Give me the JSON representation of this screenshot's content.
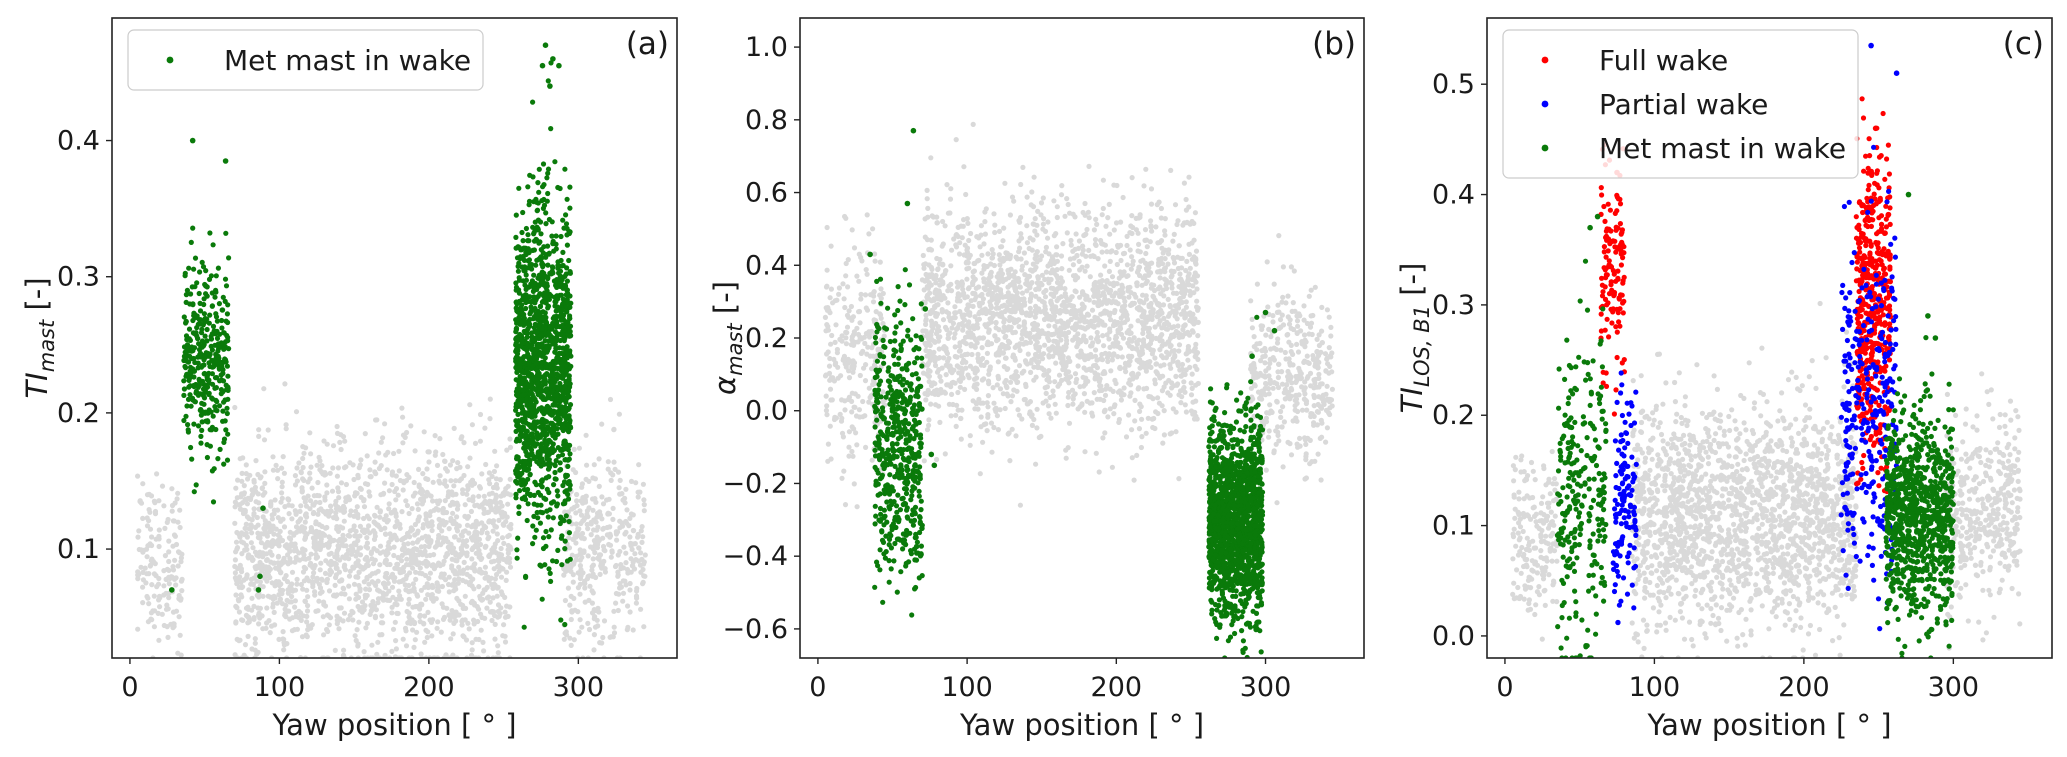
{
  "chart_data": [
    {
      "type": "scatter",
      "panel_label": "(a)",
      "xlabel": "Yaw position [ ° ]",
      "ylabel": {
        "base": "TI",
        "sub": "mast",
        "unit": " [-]"
      },
      "xlim": [
        -12,
        366
      ],
      "ylim": [
        0.02,
        0.49
      ],
      "xticks": [
        0,
        100,
        200,
        300
      ],
      "yticks": [
        0.1,
        0.2,
        0.3,
        0.4
      ],
      "ytick_decimals": 1,
      "legend": {
        "position": "upper-left",
        "entries": [
          "Met mast in wake"
        ]
      },
      "background_series": {
        "color": "#d9d9d9",
        "note_clusters": [
          {
            "x_range": [
              5,
              35
            ],
            "y_center": 0.09,
            "y_spread": 0.03,
            "count": 160
          },
          {
            "x_range": [
              70,
              255
            ],
            "y_center": 0.095,
            "y_spread": 0.04,
            "count": 1900
          },
          {
            "x_range": [
              290,
              345
            ],
            "y_center": 0.1,
            "y_spread": 0.035,
            "count": 380
          }
        ]
      },
      "series": [
        {
          "name": "Met mast in wake",
          "color": "#0a7a0a",
          "clusters": [
            {
              "x_range": [
                36,
                66
              ],
              "y_center": 0.24,
              "y_spread": 0.035,
              "count": 360
            },
            {
              "x_range": [
                258,
                295
              ],
              "y_center": 0.23,
              "y_spread": 0.06,
              "count": 1400
            }
          ],
          "points": [
            [
              42,
              0.4
            ],
            [
              64,
              0.385
            ],
            [
              28,
              0.07
            ],
            [
              87,
              0.08
            ],
            [
              86,
              0.07
            ],
            [
              89,
              0.13
            ],
            [
              278,
              0.47
            ],
            [
              283,
              0.46
            ],
            [
              287,
              0.455
            ],
            [
              276,
              0.455
            ],
            [
              281,
              0.44
            ],
            [
              262,
              0.32
            ]
          ]
        }
      ]
    },
    {
      "type": "scatter",
      "panel_label": "(b)",
      "xlabel": "Yaw position [ ° ]",
      "ylabel": {
        "base": "α",
        "sub": "mast",
        "unit": " [-]"
      },
      "xlim": [
        -12,
        366
      ],
      "ylim": [
        -0.68,
        1.08
      ],
      "xticks": [
        0,
        100,
        200,
        300
      ],
      "yticks": [
        -0.6,
        -0.4,
        -0.2,
        0.0,
        0.2,
        0.4,
        0.6,
        0.8,
        1.0
      ],
      "ytick_decimals": 1,
      "background_series": {
        "color": "#d9d9d9",
        "note_clusters": [
          {
            "x_range": [
              5,
              45
            ],
            "y_center": 0.15,
            "y_spread": 0.15,
            "count": 260
          },
          {
            "x_range": [
              70,
              255
            ],
            "y_center": 0.25,
            "y_spread": 0.15,
            "count": 2200
          },
          {
            "x_range": [
              290,
              345
            ],
            "y_center": 0.1,
            "y_spread": 0.12,
            "count": 380
          }
        ]
      },
      "series": [
        {
          "name": "",
          "color": "#0a7a0a",
          "clusters": [
            {
              "x_range": [
                38,
                70
              ],
              "y_center": -0.1,
              "y_spread": 0.17,
              "count": 520
            },
            {
              "x_range": [
                262,
                298
              ],
              "y_center": -0.3,
              "y_spread": 0.13,
              "count": 1500
            }
          ],
          "points": [
            [
              64,
              0.77
            ],
            [
              60,
              0.57
            ],
            [
              35,
              0.43
            ],
            [
              76,
              -0.12
            ],
            [
              78,
              -0.15
            ],
            [
              72,
              0.28
            ],
            [
              306,
              0.22
            ],
            [
              300,
              0.27
            ],
            [
              291,
              0.15
            ]
          ]
        }
      ]
    },
    {
      "type": "scatter",
      "panel_label": "(c)",
      "xlabel": "Yaw position [ ° ]",
      "ylabel": {
        "base": "TI",
        "sub": "LOS, B1",
        "unit": " [-]"
      },
      "xlim": [
        -12,
        366
      ],
      "ylim": [
        -0.02,
        0.56
      ],
      "xticks": [
        0,
        100,
        200,
        300
      ],
      "yticks": [
        0.0,
        0.1,
        0.2,
        0.3,
        0.4,
        0.5
      ],
      "ytick_decimals": 1,
      "legend": {
        "position": "upper-left",
        "entries": [
          "Full wake",
          "Partial wake",
          "Met mast in wake"
        ]
      },
      "background_series": {
        "color": "#d9d9d9",
        "note_clusters": [
          {
            "x_range": [
              5,
              35
            ],
            "y_center": 0.09,
            "y_spread": 0.035,
            "count": 180
          },
          {
            "x_range": [
              85,
              235
            ],
            "y_center": 0.11,
            "y_spread": 0.05,
            "count": 1800
          },
          {
            "x_range": [
              295,
              345
            ],
            "y_center": 0.11,
            "y_spread": 0.04,
            "count": 380
          }
        ]
      },
      "series": [
        {
          "name": "Full wake",
          "color": "#ff0000",
          "clusters": [
            {
              "x_range": [
                64,
                80
              ],
              "y_center": 0.33,
              "y_spread": 0.05,
              "count": 130
            },
            {
              "x_range": [
                235,
                258
              ],
              "y_center": 0.3,
              "y_spread": 0.07,
              "count": 480
            }
          ],
          "points": [
            [
              75,
              0.42
            ],
            [
              248,
              0.46
            ]
          ]
        },
        {
          "name": "Partial wake",
          "color": "#0000ff",
          "clusters": [
            {
              "x_range": [
                72,
                88
              ],
              "y_center": 0.12,
              "y_spread": 0.05,
              "count": 130
            },
            {
              "x_range": [
                225,
                262
              ],
              "y_center": 0.2,
              "y_spread": 0.08,
              "count": 300
            }
          ],
          "points": [
            [
              245,
              0.535
            ],
            [
              262,
              0.51
            ],
            [
              256,
              0.03
            ]
          ]
        },
        {
          "name": "Met mast in wake",
          "color": "#0a7a0a",
          "clusters": [
            {
              "x_range": [
                35,
                68
              ],
              "y_center": 0.12,
              "y_spread": 0.07,
              "count": 260
            },
            {
              "x_range": [
                255,
                300
              ],
              "y_center": 0.11,
              "y_spread": 0.045,
              "count": 900
            }
          ],
          "points": [
            [
              270,
              0.4
            ],
            [
              283,
              0.29
            ],
            [
              288,
              0.27
            ],
            [
              57,
              0.37
            ],
            [
              62,
              0.38
            ]
          ]
        }
      ]
    }
  ]
}
